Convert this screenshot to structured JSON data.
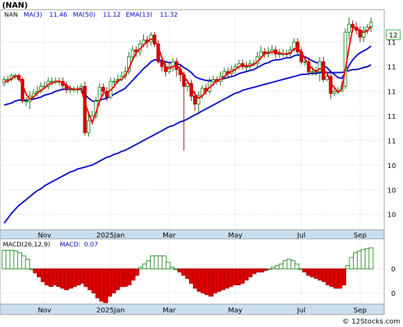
{
  "chart_data": [
    {
      "type": "candlestick",
      "title": "(NAN)",
      "legend": [
        {
          "label": "NAN",
          "value": "",
          "color": "#000000"
        },
        {
          "label": "MA(3)",
          "value": "11.46",
          "color": "#0000cc"
        },
        {
          "label": "MA(50)",
          "value": "11.12",
          "color": "#0000cc"
        },
        {
          "label": "EMA(13)",
          "value": "11.32",
          "color": "#0000cc"
        }
      ],
      "last_price_label": "12",
      "y_tick_labels": [
        "11",
        "11",
        "11",
        "11",
        "11",
        "10",
        "10",
        "10"
      ],
      "y_tick_values": [
        11.6,
        11.35,
        11.1,
        10.85,
        10.6,
        10.35,
        10.1,
        9.85
      ],
      "ylim": [
        9.7,
        11.9
      ],
      "x_tick_labels": [
        "Nov",
        "2025Jan",
        "Mar",
        "May",
        "Jul",
        "Sep"
      ],
      "x_tick_index": [
        11,
        29,
        45,
        63,
        81,
        97
      ],
      "grid": true,
      "candles": {
        "open": [
          11.18,
          11.22,
          11.22,
          11.26,
          11.26,
          11.22,
          11.0,
          11.0,
          11.05,
          11.08,
          11.1,
          11.15,
          11.15,
          11.2,
          11.2,
          11.2,
          11.2,
          11.16,
          11.12,
          11.12,
          11.12,
          11.12,
          11.15,
          10.68,
          10.8,
          10.85,
          11.0,
          11.14,
          11.1,
          11.04,
          11.2,
          11.2,
          11.22,
          11.25,
          11.3,
          11.45,
          11.52,
          11.5,
          11.58,
          11.62,
          11.6,
          11.67,
          11.58,
          11.4,
          11.35,
          11.3,
          11.35,
          11.4,
          11.32,
          11.27,
          11.15,
          11.18,
          11.05,
          10.97,
          11.06,
          11.13,
          11.1,
          11.2,
          11.22,
          11.2,
          11.25,
          11.3,
          11.28,
          11.32,
          11.35,
          11.38,
          11.35,
          11.35,
          11.38,
          11.38,
          11.45,
          11.5,
          11.48,
          11.5,
          11.52,
          11.48,
          11.48,
          11.48,
          11.48,
          11.52,
          11.6,
          11.5,
          11.4,
          11.4,
          11.3,
          11.3,
          11.3,
          11.4,
          11.22,
          11.25,
          11.08,
          11.1,
          11.1,
          11.15,
          11.7,
          11.78,
          11.75,
          11.72,
          11.65,
          11.72,
          11.75
        ],
        "close": [
          11.22,
          11.22,
          11.26,
          11.26,
          11.22,
          11.0,
          11.0,
          11.05,
          11.08,
          11.1,
          11.15,
          11.15,
          11.2,
          11.2,
          11.2,
          11.2,
          11.16,
          11.12,
          11.12,
          11.12,
          11.12,
          11.15,
          10.68,
          10.8,
          10.85,
          11.0,
          11.14,
          11.1,
          11.04,
          11.2,
          11.2,
          11.22,
          11.25,
          11.3,
          11.45,
          11.52,
          11.5,
          11.58,
          11.62,
          11.6,
          11.67,
          11.58,
          11.4,
          11.35,
          11.3,
          11.35,
          11.4,
          11.32,
          11.27,
          11.15,
          11.18,
          11.05,
          10.97,
          11.06,
          11.13,
          11.1,
          11.2,
          11.22,
          11.2,
          11.25,
          11.3,
          11.28,
          11.32,
          11.35,
          11.38,
          11.35,
          11.35,
          11.38,
          11.38,
          11.45,
          11.5,
          11.48,
          11.5,
          11.52,
          11.48,
          11.48,
          11.48,
          11.48,
          11.52,
          11.6,
          11.5,
          11.4,
          11.4,
          11.3,
          11.3,
          11.3,
          11.4,
          11.22,
          11.25,
          11.08,
          11.1,
          11.1,
          11.15,
          11.7,
          11.78,
          11.75,
          11.72,
          11.65,
          11.72,
          11.75,
          11.8
        ],
        "high": [
          11.25,
          11.26,
          11.28,
          11.28,
          11.28,
          11.24,
          11.04,
          11.1,
          11.12,
          11.15,
          11.19,
          11.2,
          11.24,
          11.24,
          11.24,
          11.24,
          11.24,
          11.2,
          11.16,
          11.15,
          11.16,
          11.18,
          11.2,
          10.88,
          10.9,
          11.04,
          11.18,
          11.18,
          11.14,
          11.24,
          11.24,
          11.27,
          11.3,
          11.35,
          11.5,
          11.56,
          11.56,
          11.62,
          11.68,
          11.66,
          11.7,
          11.7,
          11.62,
          11.45,
          11.4,
          11.4,
          11.44,
          11.44,
          11.36,
          11.3,
          11.22,
          11.22,
          11.1,
          11.1,
          11.16,
          11.17,
          11.24,
          11.26,
          11.25,
          11.3,
          11.34,
          11.34,
          11.36,
          11.38,
          11.42,
          11.42,
          11.4,
          11.42,
          11.42,
          11.5,
          11.56,
          11.54,
          11.55,
          11.57,
          11.56,
          11.53,
          11.53,
          11.52,
          11.56,
          11.64,
          11.64,
          11.55,
          11.45,
          11.44,
          11.35,
          11.35,
          11.45,
          11.45,
          11.28,
          11.28,
          11.14,
          11.14,
          11.2,
          11.74,
          11.85,
          11.82,
          11.8,
          11.76,
          11.76,
          11.78,
          11.85
        ],
        "low": [
          11.15,
          11.18,
          11.2,
          11.22,
          11.2,
          10.98,
          10.95,
          10.92,
          11.02,
          11.05,
          11.08,
          11.12,
          11.12,
          11.16,
          11.17,
          11.16,
          11.12,
          11.08,
          11.08,
          11.09,
          11.08,
          11.08,
          10.65,
          10.64,
          10.76,
          10.82,
          10.96,
          11.05,
          11.0,
          11.02,
          11.16,
          11.17,
          11.2,
          11.22,
          11.27,
          11.42,
          11.45,
          11.46,
          11.55,
          11.54,
          11.56,
          11.55,
          11.38,
          11.3,
          11.25,
          11.28,
          11.3,
          11.25,
          11.2,
          10.5,
          11.1,
          11.0,
          10.9,
          10.86,
          11.02,
          11.06,
          11.07,
          11.15,
          11.17,
          11.16,
          11.22,
          11.24,
          11.24,
          11.28,
          11.32,
          11.32,
          11.3,
          11.32,
          11.35,
          11.35,
          11.42,
          11.44,
          11.44,
          11.47,
          11.44,
          11.44,
          11.45,
          11.44,
          11.45,
          11.5,
          11.46,
          11.37,
          11.36,
          11.26,
          11.26,
          11.26,
          11.2,
          11.19,
          11.2,
          11.02,
          11.05,
          11.07,
          11.1,
          11.12,
          11.62,
          11.7,
          11.68,
          11.6,
          11.6,
          11.68,
          11.7
        ]
      },
      "series": [
        {
          "type": "line",
          "color": "#ee0000",
          "values": [
            11.2,
            11.2,
            11.23,
            11.25,
            11.25,
            11.16,
            11.07,
            11.02,
            11.04,
            11.08,
            11.11,
            11.13,
            11.17,
            11.18,
            11.2,
            11.2,
            11.19,
            11.16,
            11.13,
            11.12,
            11.12,
            11.13,
            10.98,
            10.88,
            10.78,
            10.88,
            11.0,
            11.08,
            11.09,
            11.11,
            11.15,
            11.21,
            11.22,
            11.26,
            11.33,
            11.42,
            11.49,
            11.53,
            11.57,
            11.6,
            11.63,
            11.62,
            11.55,
            11.44,
            11.35,
            11.33,
            11.35,
            11.36,
            11.33,
            11.25,
            11.2,
            11.13,
            11.07,
            11.03,
            11.05,
            11.1,
            11.14,
            11.17,
            11.21,
            11.22,
            11.25,
            11.28,
            11.3,
            11.32,
            11.35,
            11.36,
            11.36,
            11.36,
            11.37,
            11.4,
            11.44,
            11.48,
            11.49,
            11.5,
            11.5,
            11.49,
            11.48,
            11.48,
            11.49,
            11.53,
            11.54,
            11.5,
            11.43,
            11.37,
            11.33,
            11.3,
            11.33,
            11.31,
            11.29,
            11.18,
            11.14,
            11.09,
            11.12,
            11.32,
            11.54,
            11.74,
            11.75,
            11.71,
            11.7,
            11.71,
            11.76
          ]
        },
        {
          "type": "line",
          "color": "#0000cc",
          "values": [
            10.96,
            10.97,
            10.98,
            11.0,
            11.01,
            11.01,
            11.01,
            11.01,
            11.02,
            11.03,
            11.04,
            11.06,
            11.07,
            11.08,
            11.1,
            11.11,
            11.12,
            11.12,
            11.12,
            11.12,
            11.12,
            11.12,
            11.07,
            11.03,
            11.0,
            11.0,
            11.01,
            11.02,
            11.03,
            11.05,
            11.07,
            11.09,
            11.11,
            11.13,
            11.17,
            11.21,
            11.25,
            11.29,
            11.33,
            11.36,
            11.4,
            11.42,
            11.42,
            11.41,
            11.4,
            11.39,
            11.39,
            11.38,
            11.37,
            11.34,
            11.32,
            11.29,
            11.25,
            11.23,
            11.22,
            11.21,
            11.21,
            11.21,
            11.21,
            11.22,
            11.23,
            11.24,
            11.25,
            11.26,
            11.28,
            11.29,
            11.3,
            11.31,
            11.32,
            11.34,
            11.36,
            11.38,
            11.39,
            11.41,
            11.42,
            11.42,
            11.43,
            11.44,
            11.44,
            11.46,
            11.47,
            11.46,
            11.45,
            11.43,
            11.41,
            11.39,
            11.39,
            11.36,
            11.34,
            11.3,
            11.27,
            11.24,
            11.23,
            11.29,
            11.36,
            11.42,
            11.46,
            11.49,
            11.51,
            11.53,
            11.56
          ]
        },
        {
          "type": "line",
          "color": "#0000cc",
          "values": [
            9.76,
            9.81,
            9.86,
            9.9,
            9.94,
            9.97,
            10.0,
            10.03,
            10.06,
            10.09,
            10.11,
            10.14,
            10.16,
            10.18,
            10.2,
            10.22,
            10.24,
            10.26,
            10.28,
            10.29,
            10.31,
            10.32,
            10.33,
            10.34,
            10.35,
            10.37,
            10.39,
            10.41,
            10.43,
            10.44,
            10.46,
            10.47,
            10.49,
            10.5,
            10.52,
            10.54,
            10.56,
            10.58,
            10.6,
            10.62,
            10.64,
            10.66,
            10.68,
            10.7,
            10.72,
            10.74,
            10.75,
            10.77,
            10.79,
            10.8,
            10.82,
            10.84,
            10.86,
            10.88,
            10.9,
            10.92,
            10.94,
            10.96,
            10.98,
            11.0,
            11.02,
            11.04,
            11.06,
            11.08,
            11.09,
            11.11,
            11.12,
            11.13,
            11.14,
            11.15,
            11.16,
            11.17,
            11.18,
            11.19,
            11.2,
            11.21,
            11.22,
            11.23,
            11.24,
            11.25,
            11.26,
            11.27,
            11.27,
            11.28,
            11.28,
            11.28,
            11.29,
            11.29,
            11.29,
            11.29,
            11.29,
            11.29,
            11.29,
            11.3,
            11.31,
            11.32,
            11.32,
            11.33,
            11.34,
            11.35,
            11.37
          ]
        }
      ]
    },
    {
      "type": "bar",
      "title": "MACD(26,12,9)",
      "legend": [
        {
          "label": "MACD(26,12,9)",
          "value": "",
          "color": "#000000"
        },
        {
          "label": "MACD:",
          "value": "0.07",
          "color": "#0000cc"
        }
      ],
      "y_tick_labels": [
        "0",
        "0"
      ],
      "y_tick_values": [
        0.0,
        -0.3
      ],
      "ylim": [
        -0.42,
        0.32
      ],
      "x_tick_labels": [
        "Nov",
        "2025Jan",
        "Mar",
        "May",
        "Jul",
        "Sep"
      ],
      "x_tick_index": [
        11,
        29,
        45,
        63,
        81,
        97
      ],
      "grid": true,
      "values": [
        0.23,
        0.23,
        0.23,
        0.22,
        0.2,
        0.16,
        0.12,
        0.0,
        -0.05,
        -0.1,
        -0.16,
        -0.2,
        -0.22,
        -0.2,
        -0.22,
        -0.24,
        -0.26,
        -0.24,
        -0.22,
        -0.2,
        -0.18,
        -0.22,
        -0.26,
        -0.3,
        -0.36,
        -0.4,
        -0.42,
        -0.34,
        -0.3,
        -0.26,
        -0.22,
        -0.22,
        -0.2,
        -0.14,
        -0.08,
        0.02,
        0.06,
        0.1,
        0.16,
        0.16,
        0.16,
        0.16,
        0.08,
        0.02,
        0.0,
        -0.04,
        -0.08,
        -0.12,
        -0.18,
        -0.24,
        -0.28,
        -0.3,
        -0.32,
        -0.34,
        -0.3,
        -0.28,
        -0.26,
        -0.24,
        -0.22,
        -0.2,
        -0.2,
        -0.18,
        -0.14,
        -0.1,
        -0.06,
        -0.04,
        -0.04,
        -0.02,
        0.0,
        0.02,
        0.04,
        0.06,
        0.1,
        0.12,
        0.1,
        0.06,
        0.0,
        -0.04,
        -0.08,
        -0.1,
        -0.12,
        -0.14,
        -0.16,
        -0.2,
        -0.22,
        -0.24,
        -0.24,
        -0.2,
        0.04,
        0.14,
        0.2,
        0.22,
        0.24,
        0.25,
        0.26
      ]
    }
  ],
  "footer": {
    "copyright": "© 12Stocks.com"
  }
}
